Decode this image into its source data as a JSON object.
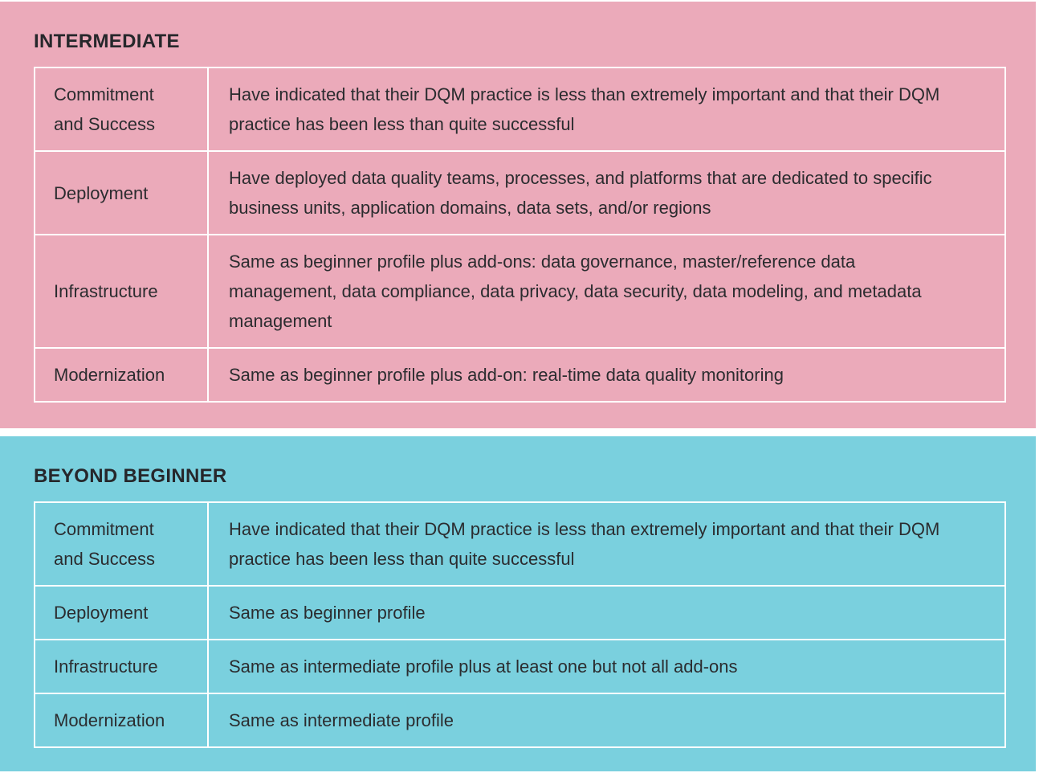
{
  "page": {
    "background": "#ffffff",
    "text_color": "#2b2c2f",
    "table_border_color": "#ffffff"
  },
  "panels": [
    {
      "id": "intermediate",
      "title": "INTERMEDIATE",
      "background": "#ebaaba",
      "rows": [
        {
          "label": "Commitment and Success",
          "description": "Have indicated that their DQM practice is less than extremely important and that their DQM practice has been less than quite successful"
        },
        {
          "label": "Deployment",
          "description": "Have deployed data quality teams, processes, and platforms that are dedicated to specific business units, application domains, data sets, and/or regions"
        },
        {
          "label": "Infrastructure",
          "description": "Same as beginner profile plus add-ons: data governance, master/reference data management, data compliance, data privacy, data security, data modeling, and metadata management"
        },
        {
          "label": "Modernization",
          "description": "Same as beginner profile plus add-on: real-time data quality monitoring"
        }
      ]
    },
    {
      "id": "beyond-beginner",
      "title": "BEYOND BEGINNER",
      "background": "#7ad0de",
      "rows": [
        {
          "label": "Commitment and Success",
          "description": "Have indicated that their DQM practice is less than extremely important and that their DQM practice has been less than quite successful"
        },
        {
          "label": "Deployment",
          "description": "Same as beginner profile"
        },
        {
          "label": "Infrastructure",
          "description": "Same as intermediate profile plus at least one but not all add-ons"
        },
        {
          "label": "Modernization",
          "description": "Same as intermediate profile"
        }
      ]
    }
  ]
}
